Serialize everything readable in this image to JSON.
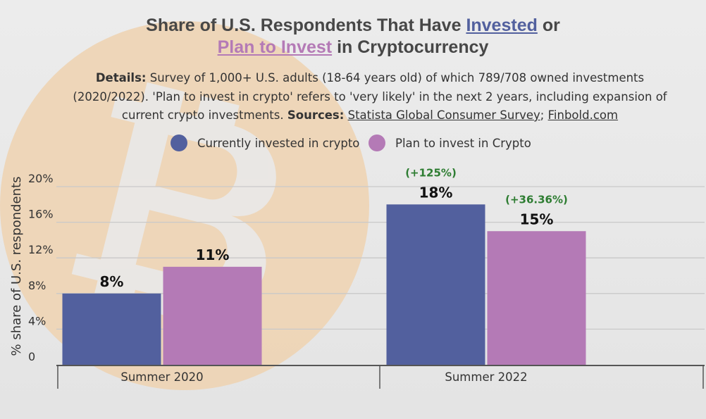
{
  "title": {
    "line1_prefix": "Share of U.S. Respondents That Have ",
    "line1_highlight": "Invested",
    "line1_suffix": " or",
    "line2_highlight": "Plan to Invest",
    "line2_suffix": " in Cryptocurrency"
  },
  "details": {
    "label": "Details:",
    "text": " Survey of 1,000+ U.S. adults (18-64 years old) of which 789/708 owned investments (2020/2022). 'Plan to invest in crypto' refers to 'very likely' in the next 2 years, including expansion of current crypto investments. ",
    "sources_label": "Sources:",
    "source1": "Statista Global Consumer Survey",
    "separator": ";",
    "source2": "Finbold.com"
  },
  "colors": {
    "invested": "#52609e",
    "plan": "#b47ab6",
    "change_text": "#2e7d32",
    "watermark": "#eed2b0"
  },
  "watermark_icon": "bitcoin-logo",
  "chart_data": {
    "type": "bar",
    "categories": [
      "Summer 2020",
      "Summer 2022"
    ],
    "series": [
      {
        "name": "Currently invested in crypto",
        "values": [
          8,
          18
        ],
        "labels": [
          "8%",
          "18%"
        ],
        "changes": [
          "",
          "(+125%)"
        ]
      },
      {
        "name": "Plan to invest in Crypto",
        "values": [
          11,
          15
        ],
        "labels": [
          "11%",
          "15%"
        ],
        "changes": [
          "",
          "(+36.36%)"
        ]
      }
    ],
    "ylabel": "% share of U.S. respondents",
    "yticks": [
      {
        "value": 0,
        "label": "0"
      },
      {
        "value": 4,
        "label": "4%"
      },
      {
        "value": 8,
        "label": "8%"
      },
      {
        "value": 12,
        "label": "12%"
      },
      {
        "value": 16,
        "label": "16%"
      },
      {
        "value": 20,
        "label": "20%"
      }
    ],
    "ylim": [
      0,
      20
    ],
    "grid": true,
    "legend": "top-center"
  }
}
